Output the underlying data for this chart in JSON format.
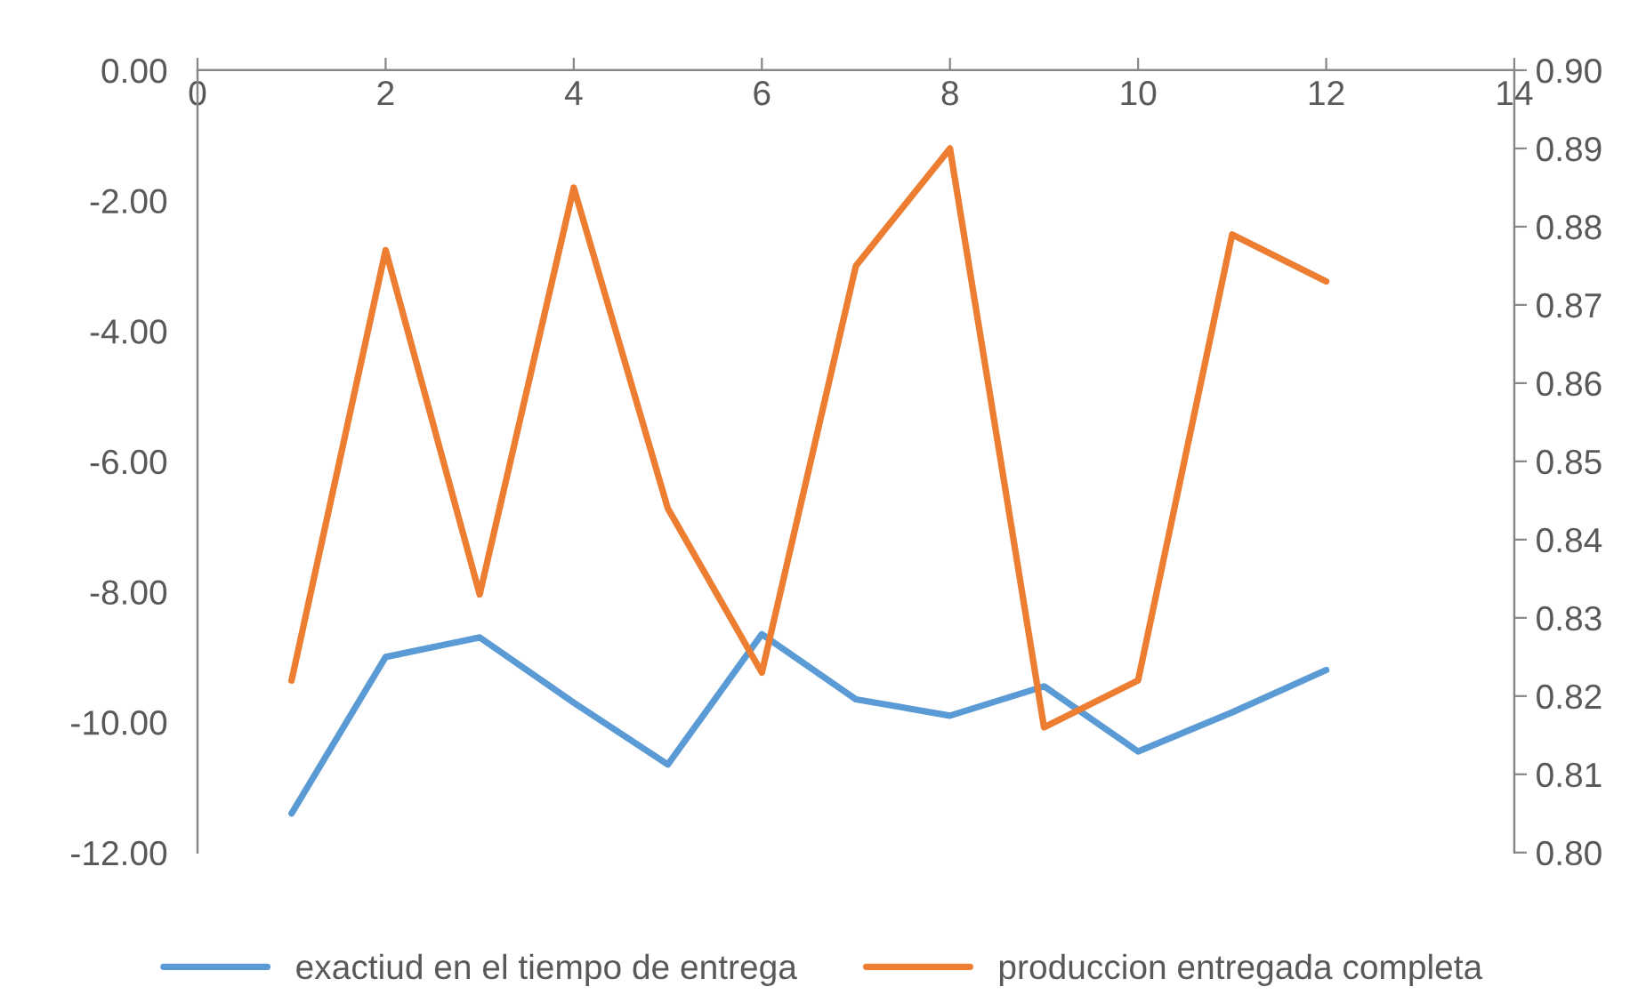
{
  "chart_data": {
    "type": "line",
    "x": [
      1,
      2,
      3,
      4,
      5,
      6,
      7,
      8,
      9,
      10,
      11,
      12
    ],
    "series": [
      {
        "name": "exactiud en el tiempo de entrega",
        "color": "#5b9bd5",
        "values": [
          -11.4,
          -9.0,
          -8.7,
          -9.7,
          -10.65,
          -8.65,
          -9.65,
          -9.9,
          -9.45,
          -10.45,
          -9.85,
          -9.2
        ]
      },
      {
        "name": "produccion entregada completa",
        "color": "#ed7d31",
        "axis": "y2",
        "values": [
          0.822,
          0.877,
          0.833,
          0.885,
          0.844,
          0.823,
          0.875,
          0.89,
          0.816,
          0.822,
          0.879,
          0.873
        ]
      }
    ],
    "xlim": [
      0,
      14
    ],
    "xticks": [
      0,
      2,
      4,
      6,
      8,
      10,
      12,
      14
    ],
    "ylim": [
      -12,
      0
    ],
    "yticks": [
      {
        "value": -12,
        "label": "-12.00"
      },
      {
        "value": -10,
        "label": "-10.00"
      },
      {
        "value": -8,
        "label": "-8.00"
      },
      {
        "value": -6,
        "label": "-6.00"
      },
      {
        "value": -4,
        "label": "-4.00"
      },
      {
        "value": -2,
        "label": "-2.00"
      },
      {
        "value": 0,
        "label": "0.00"
      }
    ],
    "y2lim": [
      0.8,
      0.9
    ],
    "y2ticks": [
      {
        "value": 0.8,
        "label": "0.80"
      },
      {
        "value": 0.81,
        "label": "0.81"
      },
      {
        "value": 0.82,
        "label": "0.82"
      },
      {
        "value": 0.83,
        "label": "0.83"
      },
      {
        "value": 0.84,
        "label": "0.84"
      },
      {
        "value": 0.85,
        "label": "0.85"
      },
      {
        "value": 0.86,
        "label": "0.86"
      },
      {
        "value": 0.87,
        "label": "0.87"
      },
      {
        "value": 0.88,
        "label": "0.88"
      },
      {
        "value": 0.89,
        "label": "0.89"
      },
      {
        "value": 0.9,
        "label": "0.90"
      }
    ],
    "grid": false,
    "legend": "bottom",
    "marker": "none",
    "line_style": "solid"
  }
}
